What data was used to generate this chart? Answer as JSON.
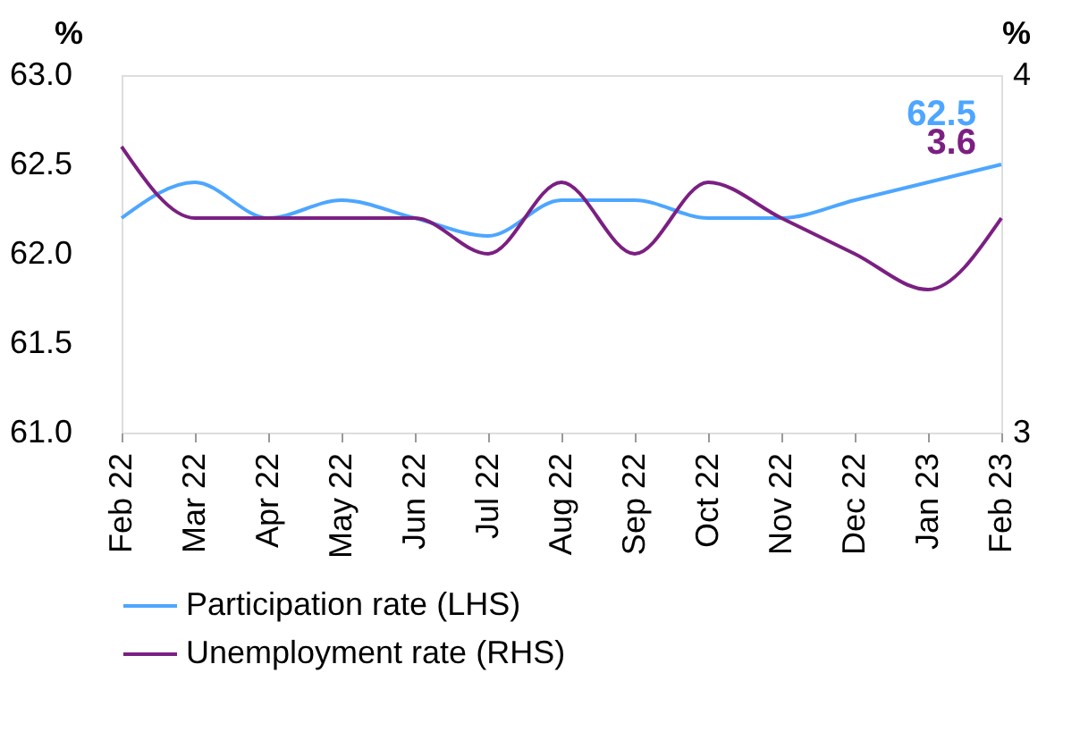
{
  "chart_data": {
    "type": "line",
    "ylabel": "%",
    "y2label": "%",
    "categories": [
      "Feb 22",
      "Mar 22",
      "Apr 22",
      "May 22",
      "Jun 22",
      "Jul 22",
      "Aug 22",
      "Sep 22",
      "Oct 22",
      "Nov 22",
      "Dec 22",
      "Jan 23",
      "Feb 23"
    ],
    "series": [
      {
        "name": "Participation rate (LHS)",
        "color": "#4da6ff",
        "values": [
          62.2,
          62.4,
          62.2,
          62.3,
          62.2,
          62.1,
          62.3,
          62.3,
          62.2,
          62.2,
          62.3,
          62.4,
          62.5
        ]
      },
      {
        "name": "Unemployment rate (RHS)",
        "color": "#7b1f82",
        "axis": "y2",
        "values": [
          3.8,
          3.6,
          3.6,
          3.6,
          3.6,
          3.5,
          3.7,
          3.5,
          3.7,
          3.6,
          3.5,
          3.4,
          3.6
        ]
      }
    ],
    "ylim": [
      61,
      63
    ],
    "yticks": [
      {
        "value": 61,
        "label": "61.0"
      },
      {
        "value": 61.5,
        "label": "61.5"
      },
      {
        "value": 62,
        "label": "62.0"
      },
      {
        "value": 62.5,
        "label": "62.5"
      },
      {
        "value": 63,
        "label": "63.0"
      }
    ],
    "y2lim": [
      3,
      4
    ],
    "y2ticks": [
      3,
      4
    ],
    "annotations": [
      "62.5",
      "3.6"
    ],
    "grid": false,
    "legend": "bottom",
    "marker": "none",
    "line_style": "solid"
  }
}
